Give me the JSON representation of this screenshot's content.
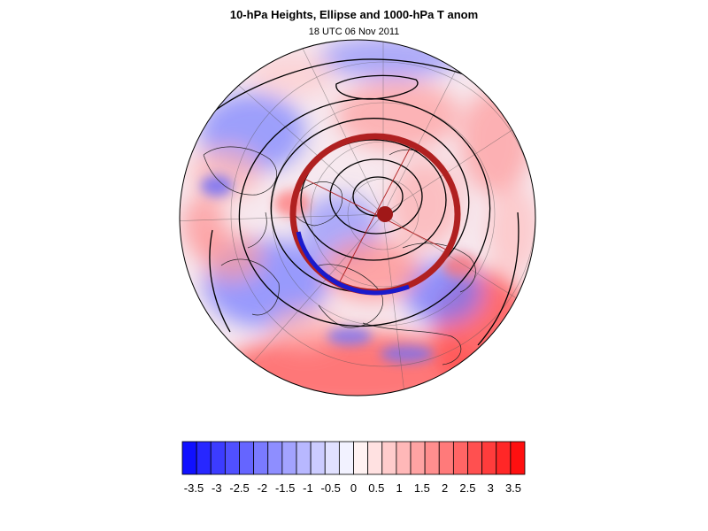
{
  "figure": {
    "title": "10-hPa Heights, Ellipse and 1000-hPa T anom",
    "subtitle": "18 UTC 06 Nov 2011"
  },
  "map": {
    "projection": "polar-stereographic-north",
    "field": "1000-hPa temperature anomaly (shaded)",
    "contours": "10-hPa geopotential height (black lines)",
    "ellipse_colors": {
      "outer": "#b02020",
      "inner": "#1a1acc"
    }
  },
  "colorbar": {
    "tick_labels": [
      "-3.5",
      "-3",
      "-2.5",
      "-2",
      "-1.5",
      "-1",
      "-0.5",
      "0",
      "0.5",
      "1",
      "1.5",
      "2",
      "2.5",
      "3",
      "3.5"
    ],
    "colors": [
      "#1010ff",
      "#2727ff",
      "#3c3cff",
      "#5050ff",
      "#6565ff",
      "#7a7aff",
      "#8e8eff",
      "#a3a3ff",
      "#b8b8ff",
      "#ccccff",
      "#e1e1ff",
      "#f2f2ff",
      "#fff2f2",
      "#ffe1e1",
      "#ffcccc",
      "#ffb8b8",
      "#ffa3a3",
      "#ff8e8e",
      "#ff7a7a",
      "#ff6565",
      "#ff5050",
      "#ff3c3c",
      "#ff2727",
      "#ff1010"
    ]
  }
}
